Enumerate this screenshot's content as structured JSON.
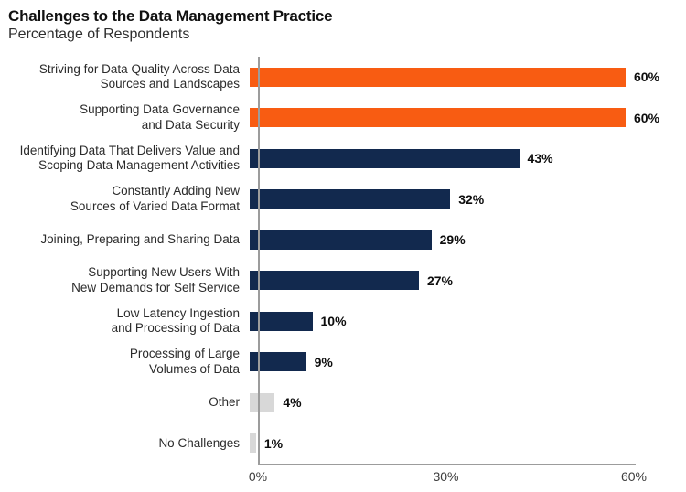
{
  "header": {
    "title": "Challenges to the Data Management Practice",
    "subtitle": "Percentage of Respondents"
  },
  "colors": {
    "highlight": "#F85C12",
    "primary": "#12294E",
    "muted": "#D8D8D8",
    "axis": "#9C9C9C"
  },
  "chart_data": {
    "type": "bar",
    "orientation": "horizontal",
    "title": "Challenges to the Data Management Practice",
    "subtitle": "Percentage of Respondents",
    "xlabel": "",
    "ylabel": "",
    "xlim": [
      0,
      60
    ],
    "grid": false,
    "legend": "none",
    "x_ticks": [
      {
        "label": "0%",
        "value": 0
      },
      {
        "label": "30%",
        "value": 30
      },
      {
        "label": "60%",
        "value": 60
      }
    ],
    "bars": [
      {
        "label_lines": [
          "Striving for Data Quality Across Data",
          "Sources and Landscapes"
        ],
        "category": "Striving for Data Quality Across Data Sources and Landscapes",
        "value": 60,
        "value_label": "60%",
        "color": "#F85C12"
      },
      {
        "label_lines": [
          "Supporting Data Governance",
          "and Data Security"
        ],
        "category": "Supporting Data Governance and Data Security",
        "value": 60,
        "value_label": "60%",
        "color": "#F85C12"
      },
      {
        "label_lines": [
          "Identifying Data That Delivers Value and",
          "Scoping Data Management Activities"
        ],
        "category": "Identifying Data That Delivers Value and Scoping Data Management Activities",
        "value": 43,
        "value_label": "43%",
        "color": "#12294E"
      },
      {
        "label_lines": [
          "Constantly Adding New",
          "Sources of Varied Data Format"
        ],
        "category": "Constantly Adding New Sources of Varied Data Format",
        "value": 32,
        "value_label": "32%",
        "color": "#12294E"
      },
      {
        "label_lines": [
          "Joining, Preparing and Sharing Data"
        ],
        "category": "Joining, Preparing and Sharing Data",
        "value": 29,
        "value_label": "29%",
        "color": "#12294E"
      },
      {
        "label_lines": [
          "Supporting New Users With",
          "New Demands for Self Service"
        ],
        "category": "Supporting New Users With New Demands for Self Service",
        "value": 27,
        "value_label": "27%",
        "color": "#12294E"
      },
      {
        "label_lines": [
          "Low Latency Ingestion",
          "and Processing of Data"
        ],
        "category": "Low Latency Ingestion and Processing of Data",
        "value": 10,
        "value_label": "10%",
        "color": "#12294E"
      },
      {
        "label_lines": [
          "Processing of Large",
          "Volumes of Data"
        ],
        "category": "Processing of Large Volumes of Data",
        "value": 9,
        "value_label": "9%",
        "color": "#12294E"
      },
      {
        "label_lines": [
          "Other"
        ],
        "category": "Other",
        "value": 4,
        "value_label": "4%",
        "color": "#D8D8D8"
      },
      {
        "label_lines": [
          "No Challenges"
        ],
        "category": "No Challenges",
        "value": 1,
        "value_label": "1%",
        "color": "#D8D8D8"
      }
    ]
  }
}
